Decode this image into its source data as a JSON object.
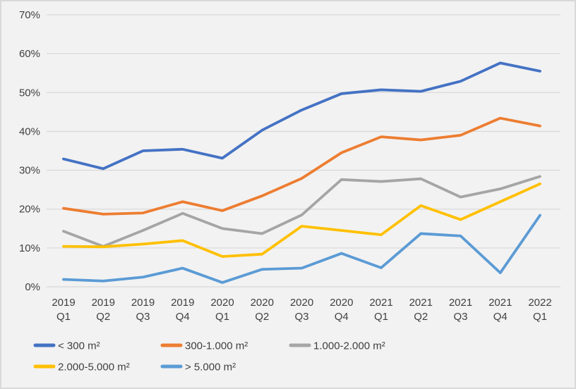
{
  "chart": {
    "background_color": "#f2f2f2",
    "frame_border_color": "#d9d9d9",
    "gridline_color": "#d9d9d9",
    "axis_label_color": "#404040",
    "legend_label_color": "#404040"
  },
  "chart_data": {
    "type": "line",
    "title": "",
    "xlabel": "",
    "ylabel": "",
    "ylim": [
      0,
      70
    ],
    "y_tick_step": 10,
    "y_tick_format": "percent",
    "y_ticks": [
      "0%",
      "10%",
      "20%",
      "30%",
      "40%",
      "50%",
      "60%",
      "70%"
    ],
    "grid": true,
    "legend_position": "bottom",
    "categories": [
      "2019 Q1",
      "2019 Q2",
      "2019 Q3",
      "2019 Q4",
      "2020 Q1",
      "2020 Q2",
      "2020 Q3",
      "2020 Q4",
      "2021 Q1",
      "2021 Q2",
      "2021 Q3",
      "2021 Q4",
      "2022 Q1"
    ],
    "series": [
      {
        "name": "< 300 m²",
        "color": "#4472c4",
        "values": [
          32.9,
          30.4,
          35.0,
          35.4,
          33.1,
          40.3,
          45.5,
          49.7,
          50.7,
          50.3,
          52.9,
          57.6,
          55.5
        ]
      },
      {
        "name": "300-1.000 m²",
        "color": "#ed7d31",
        "values": [
          20.2,
          18.7,
          19.0,
          21.9,
          19.6,
          23.4,
          27.9,
          34.5,
          38.6,
          37.8,
          39.0,
          43.4,
          41.4
        ]
      },
      {
        "name": "1.000-2.000 m²",
        "color": "#a5a5a5",
        "values": [
          14.3,
          10.4,
          14.5,
          18.9,
          15.0,
          13.7,
          18.5,
          27.6,
          27.1,
          27.8,
          23.1,
          25.2,
          28.4
        ]
      },
      {
        "name": "2.000-5.000 m²",
        "color": "#ffc000",
        "values": [
          10.4,
          10.3,
          11.0,
          11.9,
          7.8,
          8.4,
          15.6,
          14.5,
          13.4,
          20.9,
          17.3,
          21.9,
          26.5
        ]
      },
      {
        "name": "> 5.000 m²",
        "color": "#5b9bd5",
        "values": [
          1.9,
          1.5,
          2.5,
          4.8,
          1.1,
          4.5,
          4.8,
          8.6,
          4.9,
          13.7,
          13.1,
          3.6,
          18.4
        ]
      }
    ]
  }
}
